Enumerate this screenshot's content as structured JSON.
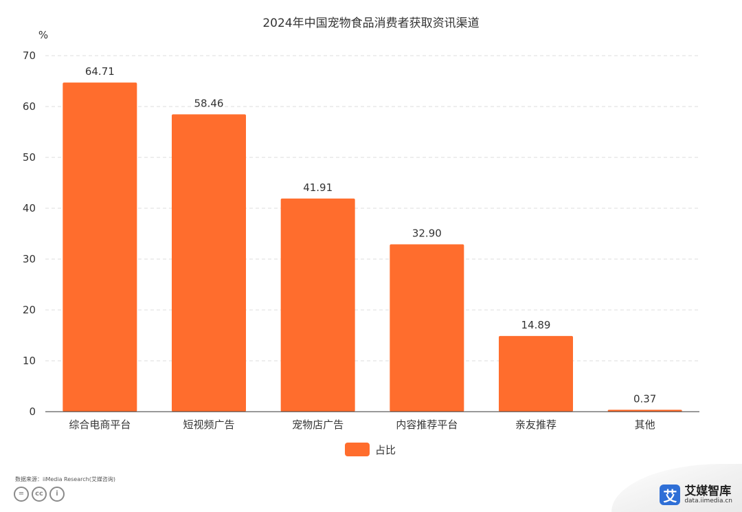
{
  "chart_data": {
    "type": "bar",
    "title": "2024年中国宠物食品消费者获取资讯渠道",
    "ylabel": "%",
    "categories": [
      "综合电商平台",
      "短视频广告",
      "宠物店广告",
      "内容推荐平台",
      "亲友推荐",
      "其他"
    ],
    "series": [
      {
        "name": "占比",
        "values": [
          64.71,
          58.46,
          41.91,
          32.9,
          14.89,
          0.37
        ]
      }
    ],
    "value_labels": [
      "64.71",
      "58.46",
      "41.91",
      "32.90",
      "14.89",
      "0.37"
    ],
    "ylim": [
      0,
      70
    ],
    "yticks": [
      0,
      10,
      20,
      30,
      40,
      50,
      60,
      70
    ],
    "grid": true,
    "legend_position": "bottom-center",
    "colors": {
      "bar": "#FF6D2D",
      "grid": "#DCDCDC",
      "axis": "#333333"
    }
  },
  "footer": {
    "source": "数据来源：iiMedia Research(艾媒咨询)",
    "cc_icons": [
      "equals-icon",
      "cc-icon",
      "person-icon"
    ],
    "cc_glyphs": [
      "=",
      "cc",
      "i"
    ]
  },
  "brand": {
    "logo_char": "艾",
    "name": "艾媒智库",
    "url": "data.iimedia.cn",
    "color": "#2F6FD6"
  }
}
